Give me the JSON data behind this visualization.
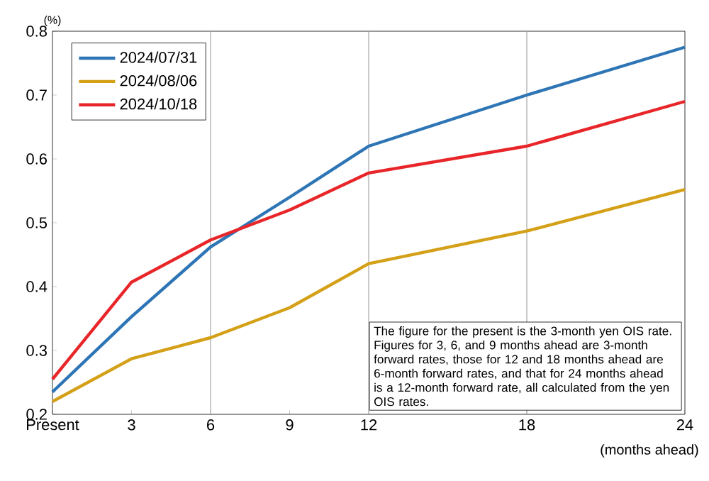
{
  "chart_data": {
    "type": "line",
    "ylabel": "(%)",
    "xlabel": "(months ahead)",
    "x": [
      0,
      3,
      6,
      9,
      12,
      18,
      24
    ],
    "series": [
      {
        "name": "2024/07/31",
        "color": "#2e75b6",
        "values": [
          0.235,
          0.353,
          0.462,
          0.54,
          0.62,
          0.7,
          0.775
        ]
      },
      {
        "name": "2024/08/06",
        "color": "#d4a017",
        "values": [
          0.22,
          0.287,
          0.32,
          0.367,
          0.436,
          0.487,
          0.552
        ]
      },
      {
        "name": "2024/10/18",
        "color": "#e8262a",
        "values": [
          0.255,
          0.407,
          0.473,
          0.52,
          0.578,
          0.62,
          0.69
        ]
      }
    ],
    "xlim": [
      0,
      24
    ],
    "ylim": [
      0.2,
      0.8
    ],
    "xticks": [
      {
        "value": 0,
        "label": "Present"
      },
      3,
      6,
      9,
      12,
      18,
      24
    ],
    "yticks": [
      0.2,
      0.3,
      0.4,
      0.5,
      0.6,
      0.7,
      0.8
    ],
    "ref_lines": [
      {
        "axis": "x",
        "value": 6,
        "color": "#a6a6a6"
      },
      {
        "axis": "x",
        "value": 12,
        "color": "#a6a6a6"
      },
      {
        "axis": "x",
        "value": 18,
        "color": "#a6a6a6"
      }
    ],
    "legend": "top left",
    "grid": false,
    "marker": "none",
    "line_style": "solid",
    "annotations": [
      "The figure for the present is the 3-month yen OIS rate. Figures for 3, 6, and 9 months ahead are 3-month forward rates, those for 12 and 18 months ahead are 6-month forward rates, and that for 24 months ahead is a 12-month forward rate, all calculated from the yen OIS rates."
    ]
  }
}
